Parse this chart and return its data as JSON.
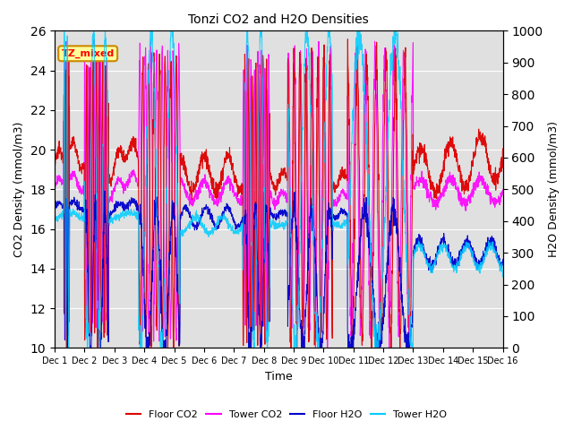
{
  "title": "Tonzi CO2 and H2O Densities",
  "xlabel": "Time",
  "ylabel_left": "CO2 Density (mmol/m3)",
  "ylabel_right": "H2O Density (mmol/m3)",
  "xlim": [
    0,
    15
  ],
  "ylim_left": [
    10,
    26
  ],
  "ylim_right": [
    0,
    1000
  ],
  "xtick_labels": [
    "Dec 1",
    "Dec 2",
    "Dec 3",
    "Dec 4",
    "Dec 5",
    "Dec 6",
    "Dec 7",
    "Dec 8",
    "Dec 9",
    "Dec 10",
    "Dec 11",
    "Dec 12",
    "Dec 13",
    "Dec 14",
    "Dec 15",
    "Dec 16"
  ],
  "yticks_left": [
    10,
    12,
    14,
    16,
    18,
    20,
    22,
    24,
    26
  ],
  "yticks_right": [
    0,
    100,
    200,
    300,
    400,
    500,
    600,
    700,
    800,
    900,
    1000
  ],
  "floor_co2_color": "#dd0000",
  "tower_co2_color": "#ff00ff",
  "floor_h2o_color": "#0000cc",
  "tower_h2o_color": "#00ccff",
  "annotation_text": "TZ_mixed",
  "annotation_facecolor": "#ffff99",
  "annotation_edgecolor": "#cc8800",
  "bg_color": "#e0e0e0",
  "legend_entries": [
    "Floor CO2",
    "Tower CO2",
    "Floor H2O",
    "Tower H2O"
  ],
  "n_points": 2160,
  "days": 15
}
